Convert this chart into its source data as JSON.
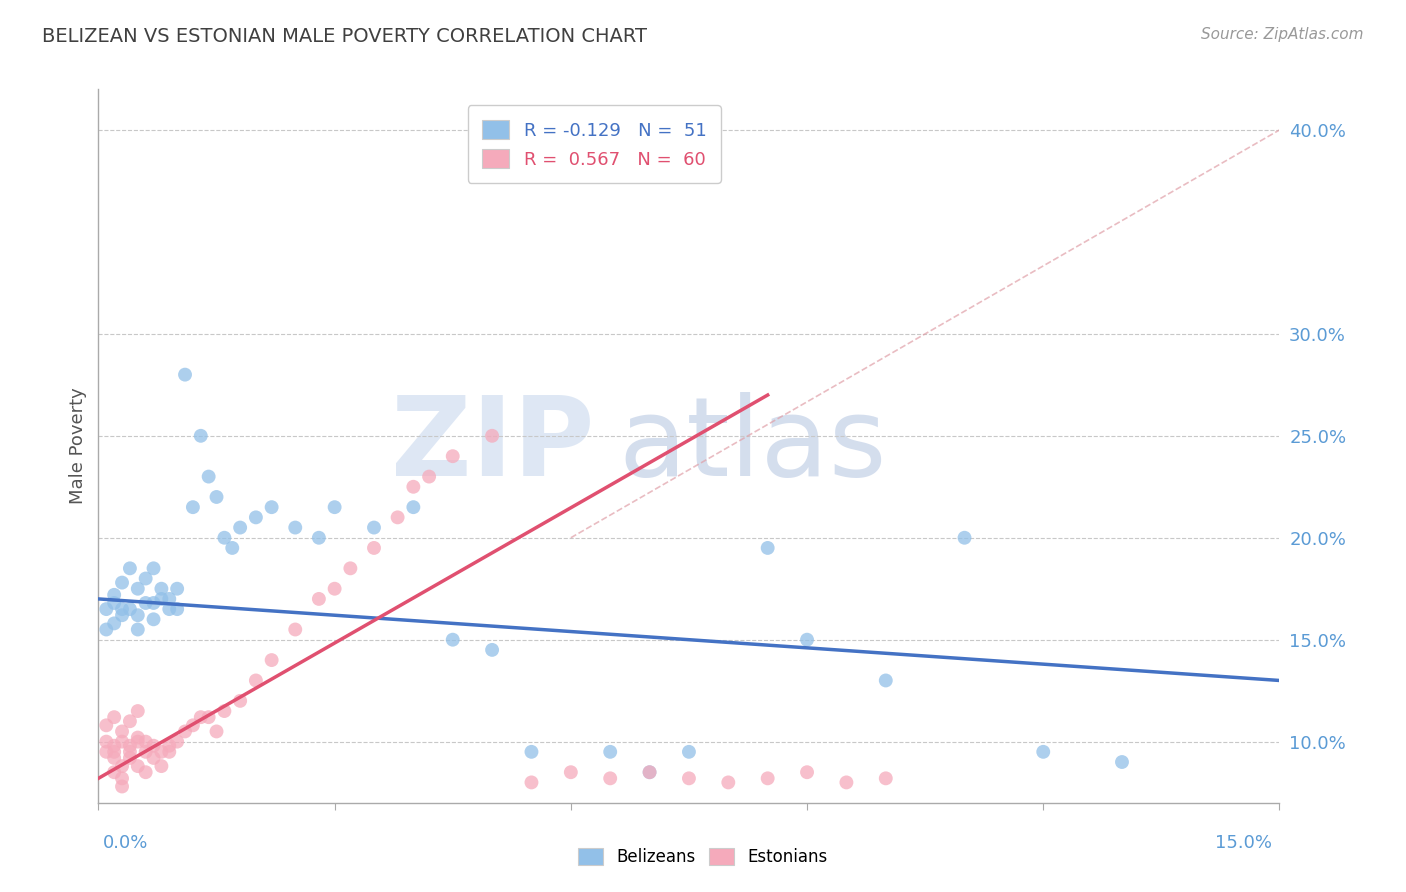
{
  "title": "BELIZEAN VS ESTONIAN MALE POVERTY CORRELATION CHART",
  "source": "Source: ZipAtlas.com",
  "ylabel": "Male Poverty",
  "right_yticks": [
    0.1,
    0.15,
    0.2,
    0.25,
    0.3,
    0.4
  ],
  "right_ytick_labels": [
    "10.0%",
    "15.0%",
    "20.0%",
    "25.0%",
    "30.0%",
    "40.0%"
  ],
  "xlim": [
    0.0,
    0.15
  ],
  "ylim": [
    0.07,
    0.42
  ],
  "blue_color": "#92C0E8",
  "pink_color": "#F5AABB",
  "blue_line_color": "#4472C4",
  "pink_line_color": "#E05070",
  "legend_blue_label": "R = -0.129   N =  51",
  "legend_pink_label": "R =  0.567   N =  60",
  "title_color": "#404040",
  "axis_label_color": "#5B9BD5",
  "grid_color": "#C8C8C8",
  "blue_line_x0": 0.0,
  "blue_line_y0": 0.17,
  "blue_line_x1": 0.15,
  "blue_line_y1": 0.13,
  "pink_line_x0": 0.0,
  "pink_line_y0": 0.082,
  "pink_line_x1": 0.085,
  "pink_line_y1": 0.27,
  "ref_line_x0": 0.06,
  "ref_line_y0": 0.2,
  "ref_line_x1": 0.15,
  "ref_line_y1": 0.4,
  "blue_scatter_x": [
    0.001,
    0.002,
    0.002,
    0.003,
    0.003,
    0.004,
    0.004,
    0.005,
    0.005,
    0.006,
    0.006,
    0.007,
    0.007,
    0.008,
    0.008,
    0.009,
    0.01,
    0.01,
    0.011,
    0.012,
    0.013,
    0.014,
    0.015,
    0.016,
    0.017,
    0.018,
    0.02,
    0.022,
    0.025,
    0.028,
    0.03,
    0.035,
    0.04,
    0.045,
    0.05,
    0.055,
    0.065,
    0.07,
    0.075,
    0.085,
    0.09,
    0.1,
    0.11,
    0.12,
    0.13,
    0.001,
    0.002,
    0.003,
    0.005,
    0.007,
    0.009
  ],
  "blue_scatter_y": [
    0.165,
    0.168,
    0.172,
    0.162,
    0.178,
    0.165,
    0.185,
    0.155,
    0.175,
    0.168,
    0.18,
    0.16,
    0.185,
    0.17,
    0.175,
    0.165,
    0.175,
    0.165,
    0.28,
    0.215,
    0.25,
    0.23,
    0.22,
    0.2,
    0.195,
    0.205,
    0.21,
    0.215,
    0.205,
    0.2,
    0.215,
    0.205,
    0.215,
    0.15,
    0.145,
    0.095,
    0.095,
    0.085,
    0.095,
    0.195,
    0.15,
    0.13,
    0.2,
    0.095,
    0.09,
    0.155,
    0.158,
    0.165,
    0.162,
    0.168,
    0.17
  ],
  "pink_scatter_x": [
    0.001,
    0.001,
    0.002,
    0.002,
    0.002,
    0.003,
    0.003,
    0.003,
    0.004,
    0.004,
    0.005,
    0.005,
    0.006,
    0.006,
    0.007,
    0.007,
    0.008,
    0.008,
    0.009,
    0.009,
    0.01,
    0.011,
    0.012,
    0.013,
    0.014,
    0.015,
    0.016,
    0.018,
    0.02,
    0.022,
    0.025,
    0.028,
    0.03,
    0.032,
    0.035,
    0.038,
    0.04,
    0.042,
    0.045,
    0.05,
    0.055,
    0.06,
    0.065,
    0.07,
    0.075,
    0.08,
    0.085,
    0.09,
    0.095,
    0.1,
    0.001,
    0.002,
    0.003,
    0.004,
    0.005,
    0.002,
    0.003,
    0.004,
    0.005,
    0.006
  ],
  "pink_scatter_y": [
    0.1,
    0.095,
    0.092,
    0.085,
    0.098,
    0.088,
    0.078,
    0.082,
    0.095,
    0.092,
    0.088,
    0.1,
    0.095,
    0.085,
    0.092,
    0.098,
    0.095,
    0.088,
    0.095,
    0.098,
    0.1,
    0.105,
    0.108,
    0.112,
    0.112,
    0.105,
    0.115,
    0.12,
    0.13,
    0.14,
    0.155,
    0.17,
    0.175,
    0.185,
    0.195,
    0.21,
    0.225,
    0.23,
    0.24,
    0.25,
    0.08,
    0.085,
    0.082,
    0.085,
    0.082,
    0.08,
    0.082,
    0.085,
    0.08,
    0.082,
    0.108,
    0.112,
    0.105,
    0.11,
    0.115,
    0.095,
    0.1,
    0.098,
    0.102,
    0.1
  ]
}
